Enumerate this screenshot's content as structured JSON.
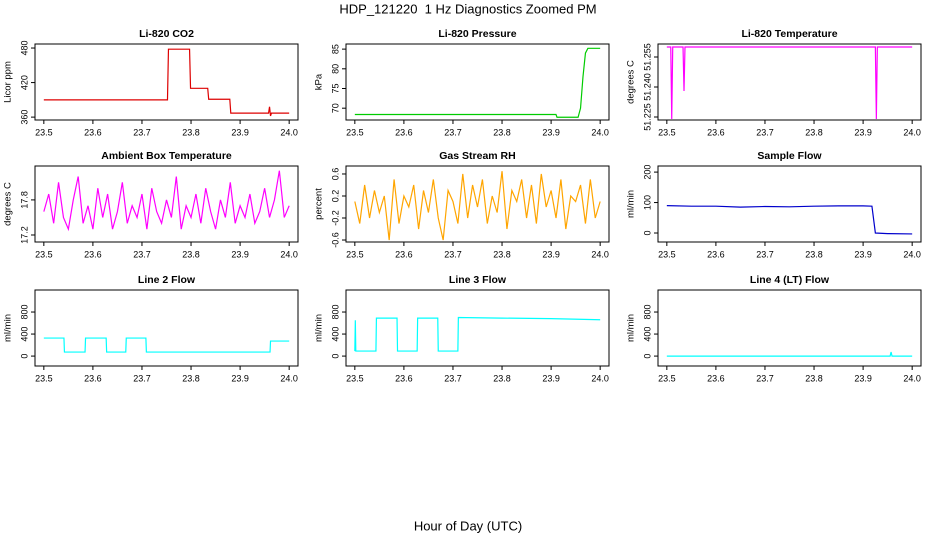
{
  "title": "HDP_121220  1 Hz Diagnostics Zoomed PM",
  "xlabel": "Hour of Day (UTC)",
  "chart_data": [
    {
      "type": "line",
      "title": "Li-820 CO2",
      "ylabel": "Licor ppm",
      "color": "#dd0000",
      "x": [
        23.5,
        23.752,
        23.754,
        23.797,
        23.799,
        23.834,
        23.836,
        23.879,
        23.881,
        23.958,
        23.96,
        23.962,
        23.964,
        24.0
      ],
      "values": [
        390,
        390,
        478,
        478,
        410,
        410,
        391,
        391,
        367,
        367,
        378,
        362,
        367,
        367
      ],
      "xlim": [
        23.482,
        24.018
      ],
      "xticks": [
        23.5,
        23.6,
        23.7,
        23.8,
        23.9,
        {
          "value": 24,
          "label": "24.0"
        }
      ],
      "ylim": [
        355,
        487
      ],
      "yticks": [
        360,
        420,
        480
      ]
    },
    {
      "type": "line",
      "title": "Li-820 Pressure",
      "ylabel": "kPa",
      "color": "#00cc00",
      "x": [
        23.5,
        23.91,
        23.912,
        23.955,
        23.96,
        23.965,
        23.97,
        23.975,
        24.0
      ],
      "values": [
        68.4,
        68.4,
        67.7,
        67.7,
        70,
        78,
        84,
        85.2,
        85.2
      ],
      "xlim": [
        23.482,
        24.018
      ],
      "xticks": [
        23.5,
        23.6,
        23.7,
        23.8,
        23.9,
        {
          "value": 24,
          "label": "24.0"
        }
      ],
      "ylim": [
        67,
        86.3
      ],
      "yticks": [
        70,
        75,
        80,
        85
      ]
    },
    {
      "type": "line",
      "title": "Li-820 Temperature",
      "ylabel": "degrees C",
      "color": "#ff00ff",
      "x": [
        23.5,
        23.508,
        23.51,
        23.512,
        23.533,
        23.535,
        23.537,
        23.925,
        23.927,
        23.929,
        24.0
      ],
      "values": [
        51.26,
        51.26,
        51.224,
        51.26,
        51.26,
        51.238,
        51.26,
        51.26,
        51.224,
        51.26,
        51.26
      ],
      "xlim": [
        23.482,
        24.018
      ],
      "xticks": [
        23.5,
        23.6,
        23.7,
        23.8,
        23.9,
        {
          "value": 24,
          "label": "24.0"
        }
      ],
      "ylim": [
        51.2235,
        51.2615
      ],
      "yticks": [
        51.225,
        {
          "value": 51.24,
          "label": "51.240"
        },
        51.255
      ]
    },
    {
      "type": "line",
      "title": "Ambient Box Temperature",
      "ylabel": "degrees C",
      "color": "#ff00ff",
      "x": [
        23.5,
        23.51,
        23.52,
        23.53,
        23.54,
        23.55,
        23.56,
        23.57,
        23.58,
        23.59,
        23.6,
        23.61,
        23.62,
        23.63,
        23.64,
        23.65,
        23.66,
        23.67,
        23.68,
        23.69,
        23.7,
        23.71,
        23.72,
        23.73,
        23.74,
        23.75,
        23.76,
        23.77,
        23.78,
        23.79,
        23.8,
        23.81,
        23.82,
        23.83,
        23.84,
        23.85,
        23.86,
        23.87,
        23.88,
        23.89,
        23.9,
        23.91,
        23.92,
        23.93,
        23.94,
        23.95,
        23.96,
        23.97,
        23.98,
        23.99,
        24.0
      ],
      "values": [
        17.6,
        17.9,
        17.4,
        18.1,
        17.5,
        17.3,
        17.8,
        18.2,
        17.4,
        17.7,
        17.3,
        18.0,
        17.5,
        17.9,
        17.3,
        17.6,
        18.1,
        17.4,
        17.7,
        17.5,
        17.9,
        17.3,
        18.0,
        17.6,
        17.4,
        17.8,
        17.5,
        18.2,
        17.3,
        17.7,
        17.5,
        17.9,
        17.4,
        18.0,
        17.6,
        17.3,
        17.8,
        17.5,
        18.1,
        17.4,
        17.7,
        17.5,
        17.9,
        17.4,
        17.6,
        18.0,
        17.5,
        17.8,
        18.3,
        17.5,
        17.7
      ],
      "xlim": [
        23.482,
        24.018
      ],
      "xticks": [
        23.5,
        23.6,
        23.7,
        23.8,
        23.9,
        {
          "value": 24,
          "label": "24.0"
        }
      ],
      "ylim": [
        17.08,
        18.38
      ],
      "yticks": [
        17.2,
        17.8
      ]
    },
    {
      "type": "line",
      "title": "Gas Stream RH",
      "ylabel": "percent",
      "color": "#ffa500",
      "x": [
        23.5,
        23.51,
        23.52,
        23.53,
        23.54,
        23.55,
        23.56,
        23.57,
        23.58,
        23.59,
        23.6,
        23.61,
        23.62,
        23.63,
        23.64,
        23.65,
        23.66,
        23.67,
        23.68,
        23.69,
        23.7,
        23.71,
        23.72,
        23.73,
        23.74,
        23.75,
        23.76,
        23.77,
        23.78,
        23.79,
        23.8,
        23.81,
        23.82,
        23.83,
        23.84,
        23.85,
        23.86,
        23.87,
        23.88,
        23.89,
        23.9,
        23.91,
        23.92,
        23.93,
        23.94,
        23.95,
        23.96,
        23.97,
        23.98,
        23.99,
        24.0
      ],
      "values": [
        0.1,
        -0.3,
        0.4,
        -0.2,
        0.3,
        -0.1,
        0.2,
        -0.6,
        0.5,
        -0.3,
        0.2,
        0.0,
        0.4,
        -0.4,
        0.3,
        -0.1,
        0.5,
        -0.2,
        -0.6,
        0.3,
        0.1,
        -0.3,
        0.6,
        -0.2,
        0.4,
        0.0,
        0.5,
        -0.3,
        0.2,
        -0.1,
        0.65,
        -0.4,
        0.3,
        0.1,
        0.5,
        -0.2,
        0.4,
        -0.3,
        0.6,
        0.0,
        0.3,
        -0.2,
        0.5,
        -0.4,
        0.2,
        0.1,
        0.4,
        -0.3,
        0.5,
        -0.2,
        0.1
      ],
      "xlim": [
        23.482,
        24.018
      ],
      "xticks": [
        23.5,
        23.6,
        23.7,
        23.8,
        23.9,
        {
          "value": 24,
          "label": "24.0"
        }
      ],
      "ylim": [
        -0.636,
        0.745
      ],
      "yticks": [
        -0.6,
        -0.2,
        0.2,
        0.6
      ]
    },
    {
      "type": "line",
      "title": "Sample Flow",
      "ylabel": "ml/min",
      "color": "#0000cc",
      "x": [
        23.5,
        23.55,
        23.6,
        23.65,
        23.7,
        23.75,
        23.8,
        23.85,
        23.9,
        23.918,
        23.925,
        23.95,
        24.0
      ],
      "values": [
        90,
        88,
        88,
        85,
        87,
        86,
        88,
        89,
        89,
        88,
        0,
        -2,
        -3
      ],
      "xlim": [
        23.482,
        24.018
      ],
      "xticks": [
        23.5,
        23.6,
        23.7,
        23.8,
        23.9,
        {
          "value": 24,
          "label": "24.0"
        }
      ],
      "ylim": [
        -29.5,
        220
      ],
      "yticks": [
        0,
        100,
        200
      ]
    },
    {
      "type": "line",
      "title": "Line 2 Flow",
      "ylabel": "ml/min",
      "color": "#00ffff",
      "x": [
        23.5,
        23.541,
        23.542,
        23.584,
        23.585,
        23.627,
        23.628,
        23.667,
        23.668,
        23.708,
        23.709,
        23.961,
        23.962,
        24.0
      ],
      "values": [
        327,
        327,
        73,
        73,
        327,
        327,
        73,
        73,
        327,
        327,
        73,
        73,
        273,
        273
      ],
      "xlim": [
        23.482,
        24.018
      ],
      "xticks": [
        23.5,
        23.6,
        23.7,
        23.8,
        23.9,
        {
          "value": 24,
          "label": "24.0"
        }
      ],
      "ylim": [
        -180,
        1200
      ],
      "yticks": [
        0,
        400,
        800
      ]
    },
    {
      "type": "line",
      "title": "Line 3 Flow",
      "ylabel": "ml/min",
      "color": "#00ffff",
      "x": [
        23.5,
        23.501,
        23.502,
        23.543,
        23.544,
        23.586,
        23.587,
        23.627,
        23.628,
        23.669,
        23.67,
        23.71,
        23.711,
        23.8,
        23.9,
        24.0
      ],
      "values": [
        91,
        650,
        91,
        91,
        690,
        690,
        91,
        91,
        690,
        690,
        91,
        91,
        700,
        690,
        680,
        660
      ],
      "xlim": [
        23.482,
        24.018
      ],
      "xticks": [
        23.5,
        23.6,
        23.7,
        23.8,
        23.9,
        {
          "value": 24,
          "label": "24.0"
        }
      ],
      "ylim": [
        -180,
        1200
      ],
      "yticks": [
        0,
        400,
        800
      ]
    },
    {
      "type": "line",
      "title": "Line 4 (LT) Flow",
      "ylabel": "ml/min",
      "color": "#00ffff",
      "x": [
        23.5,
        23.955,
        23.957,
        23.959,
        24.0
      ],
      "values": [
        0,
        0,
        73,
        0,
        0
      ],
      "xlim": [
        23.482,
        24.018
      ],
      "xticks": [
        23.5,
        23.6,
        23.7,
        23.8,
        23.9,
        {
          "value": 24,
          "label": "24.0"
        }
      ],
      "ylim": [
        -180,
        1200
      ],
      "yticks": [
        0,
        400,
        800
      ]
    }
  ]
}
